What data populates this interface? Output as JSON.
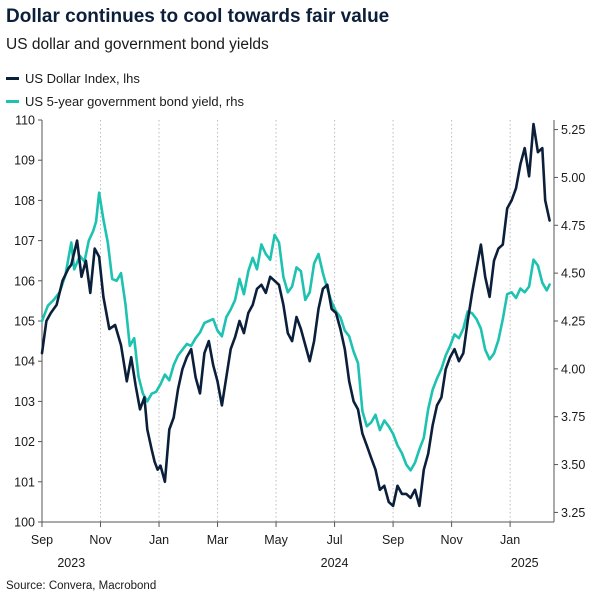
{
  "chart_data": {
    "type": "line",
    "title": "Dollar continues to cool towards fair value",
    "subtitle": "US dollar and government bond yields",
    "source": "Source: Convera, Macrobond",
    "legend_position": "top-left",
    "x_ticks": [
      "Sep",
      "Nov",
      "Jan",
      "Mar",
      "May",
      "Jul",
      "Sep",
      "Nov",
      "Jan"
    ],
    "x_tick_months": [
      0,
      2,
      4,
      6,
      8,
      10,
      12,
      14,
      16
    ],
    "year_labels": [
      {
        "label": "2023",
        "month": 1
      },
      {
        "label": "2024",
        "month": 10
      },
      {
        "label": "2025",
        "month": 16.5
      }
    ],
    "x_range_months": [
      0,
      17.5
    ],
    "left_axis": {
      "label": "US Dollar Index, lhs",
      "range": [
        100,
        110
      ],
      "ticks": [
        100,
        101,
        102,
        103,
        104,
        105,
        106,
        107,
        108,
        109,
        110
      ]
    },
    "right_axis": {
      "label": "US 5-year government bond yield, rhs",
      "range": [
        3.2,
        5.3
      ],
      "ticks": [
        "3.25",
        "3.50",
        "3.75",
        "4.00",
        "4.25",
        "4.50",
        "4.75",
        "5.00",
        "5.25"
      ]
    },
    "series": [
      {
        "name": "US Dollar Index, lhs",
        "axis": "left",
        "color": "#0b1f3a",
        "points": [
          [
            0.0,
            104.2
          ],
          [
            0.15,
            105.0
          ],
          [
            0.3,
            105.2
          ],
          [
            0.5,
            105.4
          ],
          [
            0.7,
            106.0
          ],
          [
            0.9,
            106.3
          ],
          [
            1.0,
            106.4
          ],
          [
            1.2,
            107.0
          ],
          [
            1.35,
            106.1
          ],
          [
            1.5,
            106.5
          ],
          [
            1.65,
            105.7
          ],
          [
            1.8,
            106.8
          ],
          [
            1.95,
            106.6
          ],
          [
            2.1,
            105.6
          ],
          [
            2.3,
            104.8
          ],
          [
            2.5,
            104.9
          ],
          [
            2.7,
            104.4
          ],
          [
            2.9,
            103.5
          ],
          [
            3.05,
            104.1
          ],
          [
            3.2,
            103.4
          ],
          [
            3.35,
            102.8
          ],
          [
            3.5,
            103.1
          ],
          [
            3.6,
            102.3
          ],
          [
            3.75,
            101.8
          ],
          [
            3.85,
            101.5
          ],
          [
            3.95,
            101.3
          ],
          [
            4.05,
            101.4
          ],
          [
            4.2,
            101.0
          ],
          [
            4.35,
            102.3
          ],
          [
            4.5,
            102.6
          ],
          [
            4.65,
            103.3
          ],
          [
            4.8,
            103.8
          ],
          [
            4.95,
            104.1
          ],
          [
            5.1,
            104.3
          ],
          [
            5.25,
            103.6
          ],
          [
            5.4,
            103.2
          ],
          [
            5.55,
            104.2
          ],
          [
            5.7,
            104.5
          ],
          [
            5.85,
            103.9
          ],
          [
            6.0,
            103.5
          ],
          [
            6.15,
            102.9
          ],
          [
            6.3,
            103.6
          ],
          [
            6.45,
            104.3
          ],
          [
            6.6,
            104.6
          ],
          [
            6.75,
            105.0
          ],
          [
            6.9,
            104.7
          ],
          [
            7.05,
            105.2
          ],
          [
            7.2,
            105.4
          ],
          [
            7.35,
            105.8
          ],
          [
            7.5,
            105.9
          ],
          [
            7.65,
            105.7
          ],
          [
            7.8,
            106.1
          ],
          [
            7.95,
            106.0
          ],
          [
            8.1,
            105.9
          ],
          [
            8.25,
            105.4
          ],
          [
            8.4,
            104.7
          ],
          [
            8.55,
            104.5
          ],
          [
            8.7,
            105.1
          ],
          [
            8.85,
            104.8
          ],
          [
            9.0,
            104.4
          ],
          [
            9.15,
            104.0
          ],
          [
            9.3,
            104.5
          ],
          [
            9.45,
            105.3
          ],
          [
            9.6,
            105.8
          ],
          [
            9.75,
            105.9
          ],
          [
            9.9,
            105.3
          ],
          [
            10.05,
            105.2
          ],
          [
            10.2,
            104.8
          ],
          [
            10.35,
            104.3
          ],
          [
            10.5,
            103.5
          ],
          [
            10.65,
            103.0
          ],
          [
            10.8,
            102.8
          ],
          [
            10.95,
            102.2
          ],
          [
            11.1,
            101.9
          ],
          [
            11.25,
            101.6
          ],
          [
            11.4,
            101.3
          ],
          [
            11.55,
            100.8
          ],
          [
            11.7,
            100.9
          ],
          [
            11.85,
            100.5
          ],
          [
            12.0,
            100.4
          ],
          [
            12.15,
            100.9
          ],
          [
            12.3,
            100.7
          ],
          [
            12.45,
            100.7
          ],
          [
            12.6,
            100.6
          ],
          [
            12.75,
            100.8
          ],
          [
            12.9,
            100.4
          ],
          [
            13.05,
            101.3
          ],
          [
            13.2,
            101.7
          ],
          [
            13.35,
            102.4
          ],
          [
            13.5,
            102.9
          ],
          [
            13.65,
            103.1
          ],
          [
            13.8,
            103.8
          ],
          [
            13.95,
            104.1
          ],
          [
            14.1,
            104.3
          ],
          [
            14.25,
            104.0
          ],
          [
            14.4,
            104.2
          ],
          [
            14.55,
            105.0
          ],
          [
            14.7,
            105.7
          ],
          [
            14.85,
            106.3
          ],
          [
            15.0,
            106.9
          ],
          [
            15.15,
            106.1
          ],
          [
            15.3,
            105.6
          ],
          [
            15.45,
            106.5
          ],
          [
            15.6,
            106.8
          ],
          [
            15.75,
            106.9
          ],
          [
            15.9,
            107.8
          ],
          [
            16.05,
            108.0
          ],
          [
            16.2,
            108.3
          ],
          [
            16.35,
            108.9
          ],
          [
            16.5,
            109.3
          ],
          [
            16.65,
            108.6
          ],
          [
            16.8,
            109.9
          ],
          [
            16.95,
            109.2
          ],
          [
            17.1,
            109.3
          ],
          [
            17.2,
            108.0
          ],
          [
            17.35,
            107.5
          ]
        ]
      },
      {
        "name": "US 5-year government bond yield, rhs",
        "axis": "right",
        "color": "#1dc2b0",
        "points": [
          [
            0.0,
            4.25
          ],
          [
            0.2,
            4.33
          ],
          [
            0.4,
            4.36
          ],
          [
            0.6,
            4.4
          ],
          [
            0.8,
            4.49
          ],
          [
            1.0,
            4.66
          ],
          [
            1.1,
            4.52
          ],
          [
            1.3,
            4.59
          ],
          [
            1.45,
            4.56
          ],
          [
            1.6,
            4.67
          ],
          [
            1.75,
            4.72
          ],
          [
            1.85,
            4.77
          ],
          [
            1.95,
            4.92
          ],
          [
            2.1,
            4.78
          ],
          [
            2.25,
            4.66
          ],
          [
            2.4,
            4.47
          ],
          [
            2.55,
            4.46
          ],
          [
            2.7,
            4.5
          ],
          [
            2.85,
            4.34
          ],
          [
            3.0,
            4.12
          ],
          [
            3.15,
            4.16
          ],
          [
            3.3,
            3.96
          ],
          [
            3.45,
            3.87
          ],
          [
            3.6,
            3.83
          ],
          [
            3.75,
            3.87
          ],
          [
            3.9,
            3.88
          ],
          [
            4.05,
            3.92
          ],
          [
            4.2,
            3.97
          ],
          [
            4.35,
            3.94
          ],
          [
            4.5,
            4.02
          ],
          [
            4.65,
            4.07
          ],
          [
            4.8,
            4.1
          ],
          [
            4.95,
            4.13
          ],
          [
            5.1,
            4.12
          ],
          [
            5.25,
            4.16
          ],
          [
            5.4,
            4.19
          ],
          [
            5.55,
            4.24
          ],
          [
            5.7,
            4.25
          ],
          [
            5.85,
            4.26
          ],
          [
            6.0,
            4.2
          ],
          [
            6.15,
            4.17
          ],
          [
            6.3,
            4.27
          ],
          [
            6.45,
            4.31
          ],
          [
            6.6,
            4.36
          ],
          [
            6.75,
            4.47
          ],
          [
            6.9,
            4.39
          ],
          [
            7.05,
            4.51
          ],
          [
            7.2,
            4.58
          ],
          [
            7.35,
            4.52
          ],
          [
            7.5,
            4.65
          ],
          [
            7.65,
            4.6
          ],
          [
            7.8,
            4.57
          ],
          [
            7.95,
            4.7
          ],
          [
            8.1,
            4.66
          ],
          [
            8.25,
            4.48
          ],
          [
            8.4,
            4.4
          ],
          [
            8.55,
            4.43
          ],
          [
            8.7,
            4.53
          ],
          [
            8.85,
            4.51
          ],
          [
            9.0,
            4.36
          ],
          [
            9.15,
            4.4
          ],
          [
            9.3,
            4.55
          ],
          [
            9.45,
            4.6
          ],
          [
            9.6,
            4.5
          ],
          [
            9.75,
            4.42
          ],
          [
            9.9,
            4.35
          ],
          [
            10.05,
            4.3
          ],
          [
            10.2,
            4.27
          ],
          [
            10.35,
            4.2
          ],
          [
            10.5,
            4.17
          ],
          [
            10.65,
            4.09
          ],
          [
            10.8,
            4.03
          ],
          [
            10.95,
            3.78
          ],
          [
            11.1,
            3.7
          ],
          [
            11.25,
            3.72
          ],
          [
            11.4,
            3.76
          ],
          [
            11.55,
            3.68
          ],
          [
            11.7,
            3.73
          ],
          [
            11.85,
            3.7
          ],
          [
            12.0,
            3.66
          ],
          [
            12.15,
            3.6
          ],
          [
            12.3,
            3.56
          ],
          [
            12.45,
            3.5
          ],
          [
            12.6,
            3.47
          ],
          [
            12.75,
            3.51
          ],
          [
            12.9,
            3.58
          ],
          [
            13.05,
            3.64
          ],
          [
            13.2,
            3.79
          ],
          [
            13.35,
            3.89
          ],
          [
            13.5,
            3.95
          ],
          [
            13.65,
            4.0
          ],
          [
            13.8,
            4.07
          ],
          [
            13.95,
            4.12
          ],
          [
            14.1,
            4.18
          ],
          [
            14.25,
            4.16
          ],
          [
            14.4,
            4.21
          ],
          [
            14.55,
            4.3
          ],
          [
            14.7,
            4.29
          ],
          [
            14.85,
            4.26
          ],
          [
            15.0,
            4.21
          ],
          [
            15.15,
            4.1
          ],
          [
            15.3,
            4.05
          ],
          [
            15.45,
            4.08
          ],
          [
            15.6,
            4.15
          ],
          [
            15.75,
            4.26
          ],
          [
            15.9,
            4.39
          ],
          [
            16.05,
            4.4
          ],
          [
            16.2,
            4.37
          ],
          [
            16.35,
            4.42
          ],
          [
            16.5,
            4.4
          ],
          [
            16.65,
            4.43
          ],
          [
            16.8,
            4.57
          ],
          [
            16.95,
            4.54
          ],
          [
            17.1,
            4.45
          ],
          [
            17.25,
            4.41
          ],
          [
            17.35,
            4.44
          ]
        ]
      }
    ]
  }
}
